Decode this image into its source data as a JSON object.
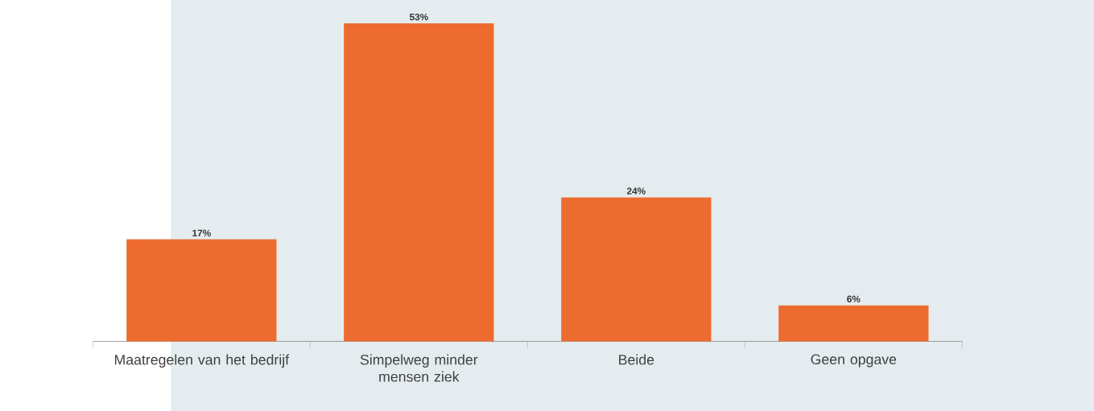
{
  "chart_data": {
    "type": "bar",
    "categories": [
      "Maatregelen van het bedrijf",
      "Simpelweg minder mensen ziek",
      "Beide",
      "Geen opgave"
    ],
    "values": [
      17,
      53,
      24,
      6
    ],
    "value_labels": [
      "17%",
      "53%",
      "24%",
      "6%"
    ],
    "color": "#ee6b2f"
  }
}
